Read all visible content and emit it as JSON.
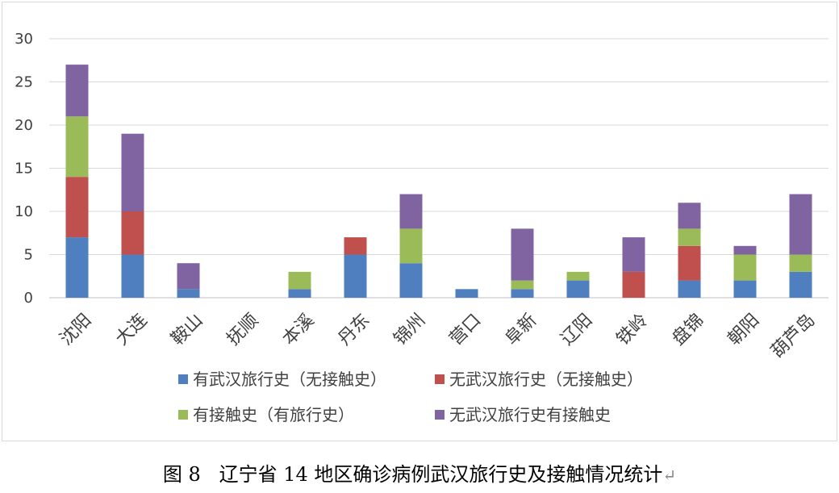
{
  "chart_data": {
    "type": "bar",
    "stacked": true,
    "categories": [
      "沈阳",
      "大连",
      "鞍山",
      "抚顺",
      "本溪",
      "丹东",
      "锦州",
      "营口",
      "阜新",
      "辽阳",
      "铁岭",
      "盘锦",
      "朝阳",
      "葫芦岛"
    ],
    "series": [
      {
        "name": "有武汉旅行史（无接触史）",
        "color": "#4f7fbf",
        "values": [
          7,
          5,
          1,
          0,
          1,
          5,
          4,
          1,
          1,
          2,
          0,
          2,
          2,
          3
        ]
      },
      {
        "name": "无武汉旅行史（无接触史）",
        "color": "#c0504d",
        "values": [
          7,
          5,
          0,
          0,
          0,
          2,
          0,
          0,
          0,
          0,
          3,
          4,
          0,
          0
        ]
      },
      {
        "name": "有接触史（有旅行史）",
        "color": "#9bbb59",
        "values": [
          7,
          0,
          0,
          0,
          2,
          0,
          4,
          0,
          1,
          1,
          0,
          2,
          3,
          2
        ]
      },
      {
        "name": "无武汉旅行史有接触史",
        "color": "#8064a2",
        "values": [
          6,
          9,
          3,
          0,
          0,
          0,
          4,
          0,
          6,
          0,
          4,
          3,
          1,
          7
        ]
      }
    ],
    "ylim": [
      0,
      30
    ],
    "yticks": [
      "0",
      "5",
      "10",
      "15",
      "20",
      "25",
      "30"
    ],
    "grid": true,
    "legend_position": "bottom"
  },
  "caption": {
    "figure_label": "图 8",
    "text": "辽宁省 14 地区确诊病例武汉旅行史及接触情况统计",
    "return_mark": "↵"
  }
}
